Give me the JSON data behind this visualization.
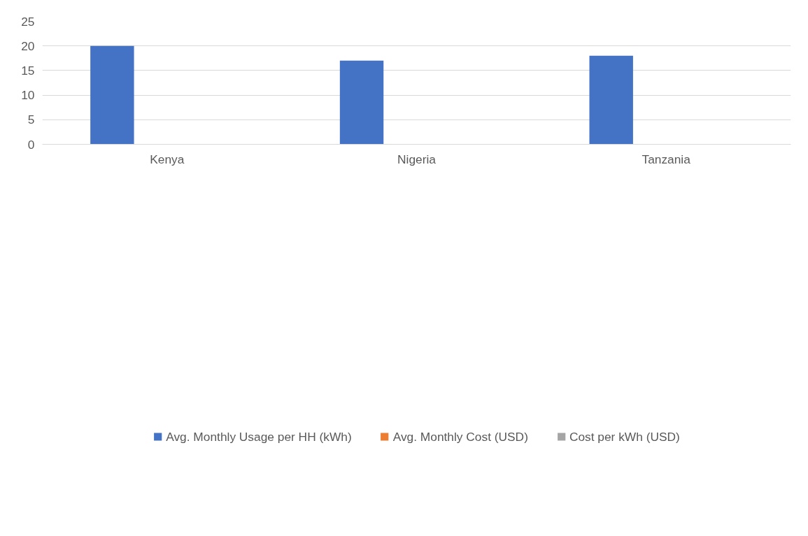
{
  "chart_data": {
    "type": "bar",
    "categories": [
      "Kenya",
      "Nigeria",
      "Tanzania"
    ],
    "series": [
      {
        "name": "Avg. Monthly Usage per HH (kWh)",
        "color": "#4472c4",
        "values": [
          20,
          17,
          18
        ]
      },
      {
        "name": "Avg. Monthly Cost (USD)",
        "color": "#ed7d31",
        "values": [
          0,
          0,
          0
        ]
      },
      {
        "name": "Cost per kWh (USD)",
        "color": "#a5a5a5",
        "values": [
          0,
          0,
          0
        ]
      }
    ],
    "ylim": [
      0,
      25
    ],
    "yticks": [
      0,
      5,
      10,
      15,
      20,
      25
    ],
    "grid": "y",
    "legend": "bottom"
  }
}
